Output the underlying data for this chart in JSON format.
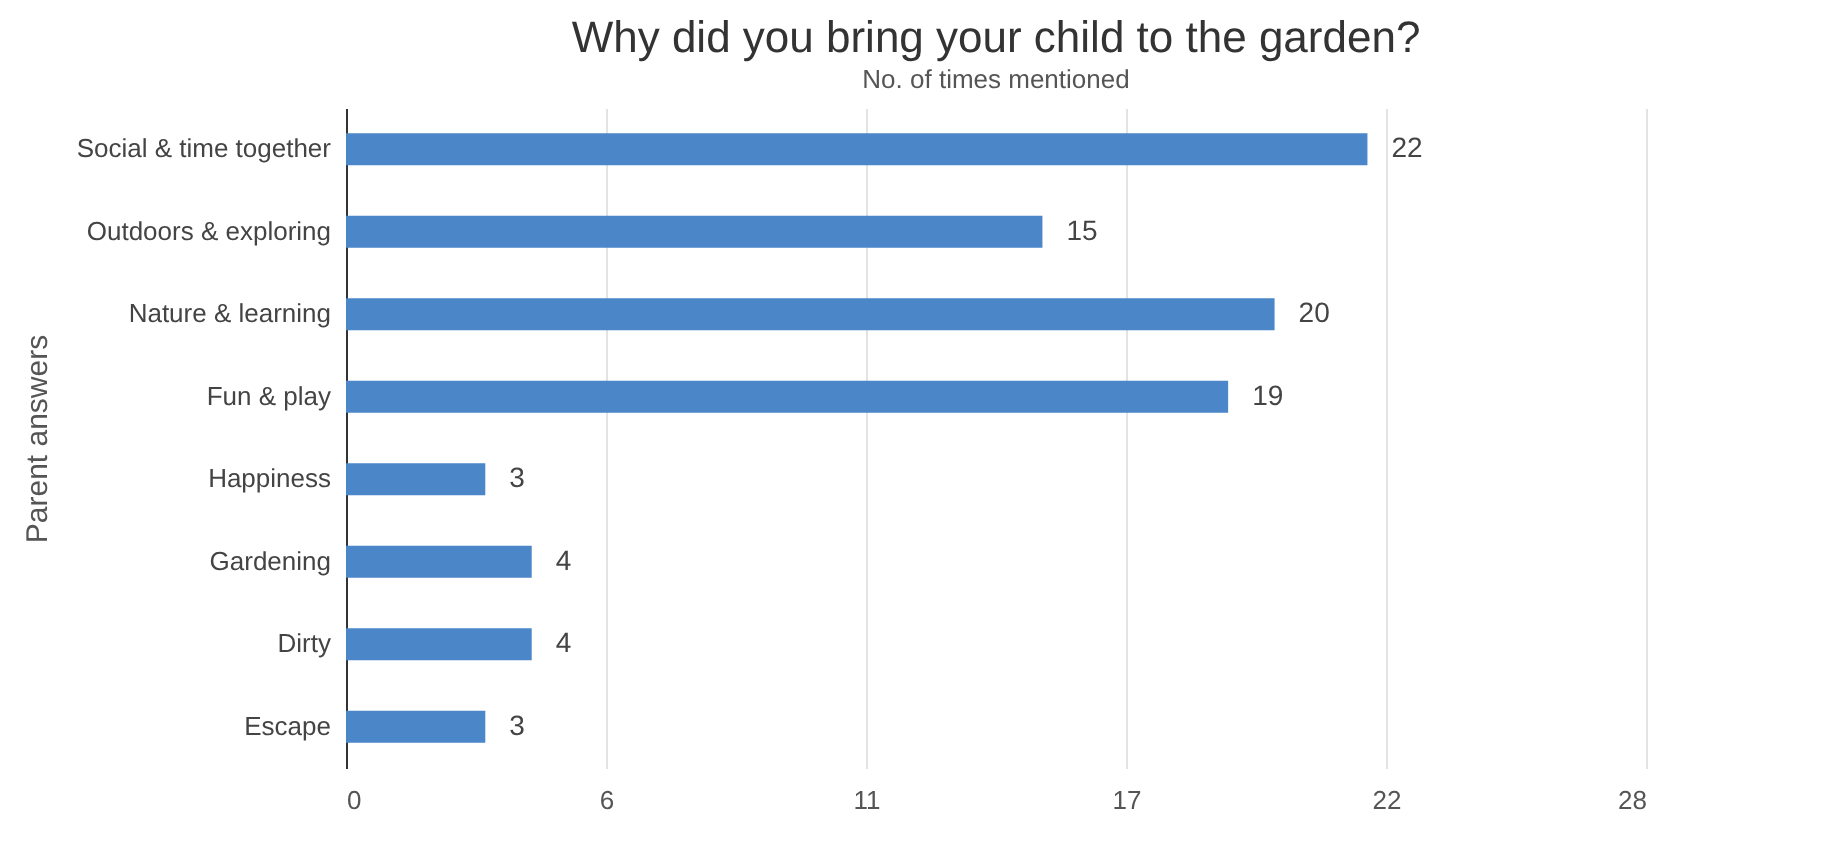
{
  "chart_data": {
    "type": "bar",
    "orientation": "horizontal",
    "title": "Why did you bring your child to the garden?",
    "xlabel": "No. of times mentioned",
    "ylabel": "Parent answers",
    "categories": [
      "Social & time together",
      "Outdoors & exploring",
      "Nature & learning",
      "Fun & play",
      "Happiness",
      "Gardening",
      "Dirty",
      "Escape"
    ],
    "values": [
      22,
      15,
      20,
      19,
      3,
      4,
      4,
      3
    ],
    "color": "#4a86c8",
    "xlim": [
      0,
      28
    ],
    "xticks": [
      0,
      {
        "value": 5.6,
        "label": "6"
      },
      {
        "value": 11.2,
        "label": "11"
      },
      {
        "value": 16.8,
        "label": "17"
      },
      {
        "value": 22.4,
        "label": "22"
      },
      28
    ],
    "grid": "x",
    "data_labels": true
  }
}
